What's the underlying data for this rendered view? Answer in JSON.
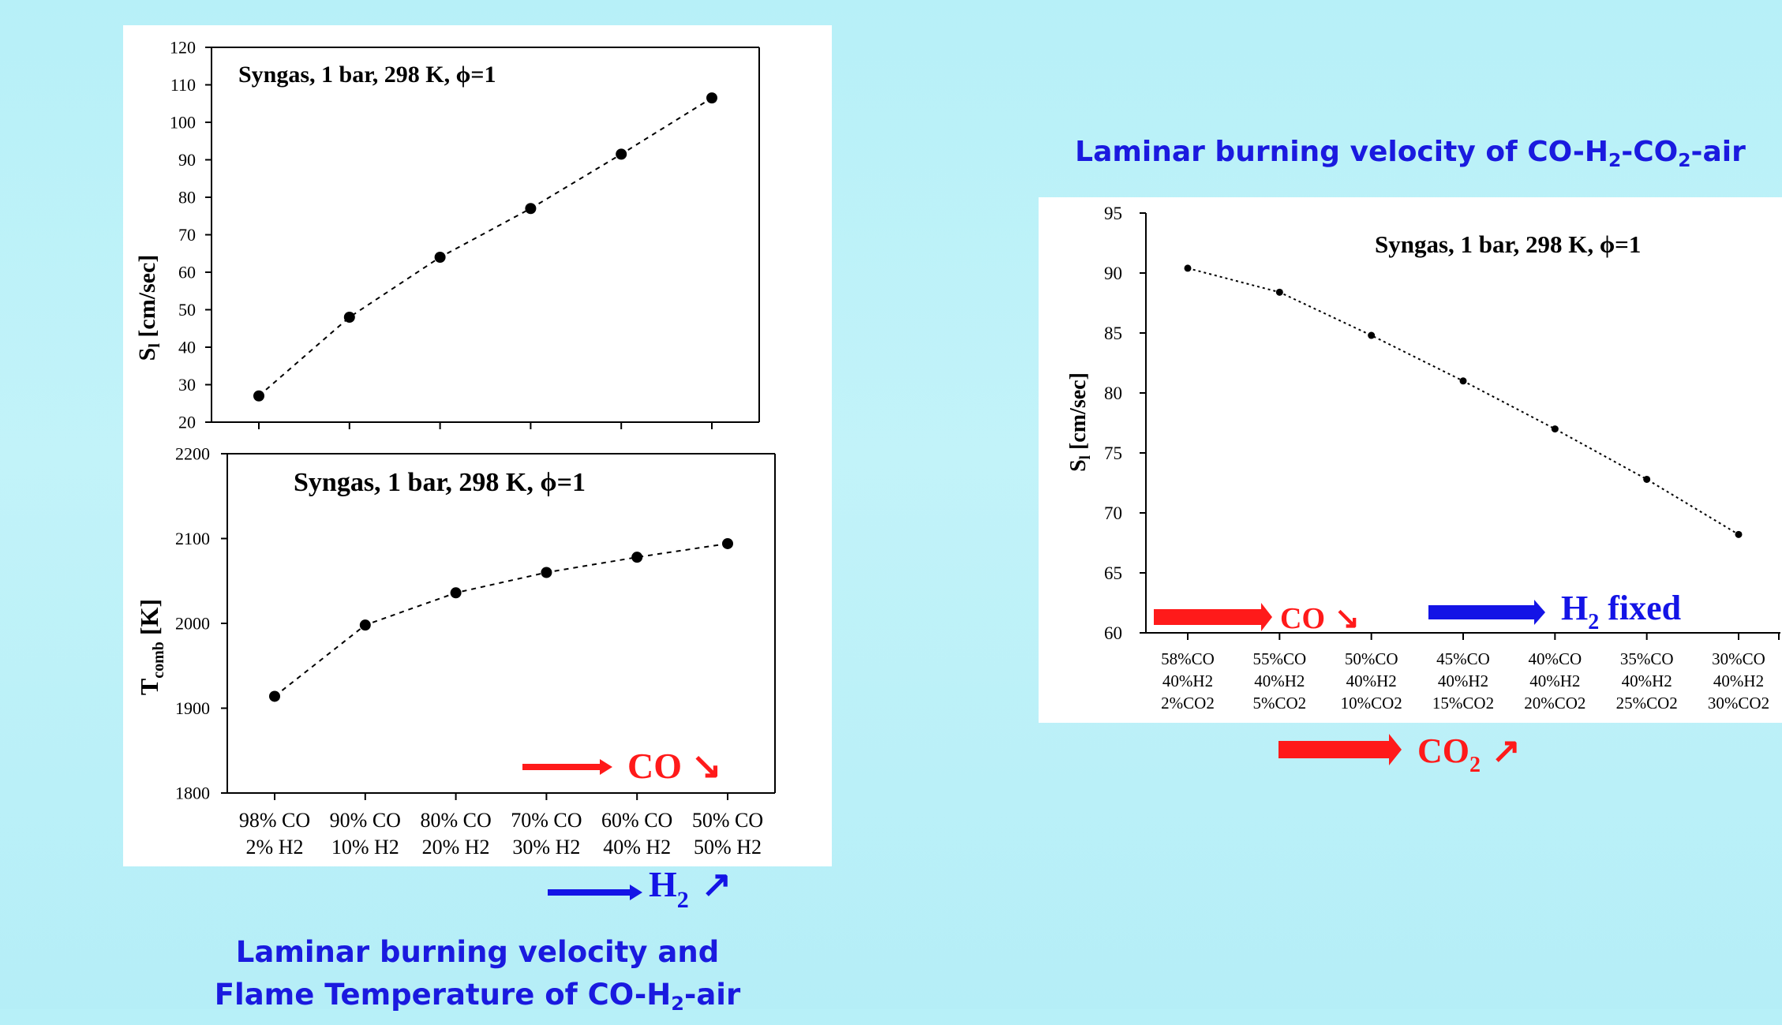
{
  "colors": {
    "red": "#ff1a1a",
    "blue": "#1414e6",
    "caption": "#1a1adf",
    "background": "#b9f0f8"
  },
  "captions": {
    "right": {
      "prefix": "Laminar burning velocity of CO-H",
      "sub1": "2",
      "mid": "-CO",
      "sub2": "2",
      "suffix": "-air"
    },
    "left": {
      "line1": "Laminar burning velocity  and",
      "line2_prefix": "Flame Temperature of CO-H",
      "line2_sub": "2",
      "line2_suffix": "-air"
    }
  },
  "annotations": {
    "co_down": {
      "text": "CO",
      "icon": "arrow-down-right-icon",
      "glyph": "↘"
    },
    "h2_up": {
      "text": "H",
      "sub": "2",
      "icon": "arrow-up-right-icon",
      "glyph": "↗"
    },
    "h2_fixed": {
      "text": "H",
      "sub": "2",
      "suffix": " fixed"
    },
    "co2_up": {
      "text": "CO",
      "sub": "2",
      "icon": "arrow-up-right-icon",
      "glyph": "↗"
    }
  },
  "chart_data": [
    {
      "type": "line",
      "title": "Syngas, 1 bar, 298 K, ϕ=1",
      "xlabel": "",
      "ylabel": "S",
      "ylabel_sub": "l",
      "ylabel_unit": " [cm/sec]",
      "ylim": [
        20,
        120
      ],
      "yticks": [
        20,
        30,
        40,
        50,
        60,
        70,
        80,
        90,
        100,
        110,
        120
      ],
      "categories": [
        "98% CO 2% H2",
        "90% CO 10% H2",
        "80% CO 20% H2",
        "70% CO 30% H2",
        "60% CO 40% H2",
        "50% CO 50% H2"
      ],
      "values": [
        27,
        48,
        64,
        77,
        91.5,
        106.5
      ],
      "grid": false,
      "line_style": "dashed"
    },
    {
      "type": "line",
      "title": "Syngas, 1 bar, 298 K, ϕ=1",
      "xlabel": "",
      "ylabel": "T",
      "ylabel_sub": "comb",
      "ylabel_unit": " [K]",
      "ylim": [
        1800,
        2200
      ],
      "yticks": [
        1800,
        1900,
        2000,
        2100,
        2200
      ],
      "categories": [
        "98% CO 2% H2",
        "90% CO 10% H2",
        "80% CO 20% H2",
        "70% CO 30% H2",
        "60% CO 40% H2",
        "50% CO 50% H2"
      ],
      "tick_lines": [
        [
          "98% CO",
          "2% H2"
        ],
        [
          "90% CO",
          "10% H2"
        ],
        [
          "80% CO",
          "20% H2"
        ],
        [
          "70% CO",
          "30% H2"
        ],
        [
          "60% CO",
          "40% H2"
        ],
        [
          "50% CO",
          "50% H2"
        ]
      ],
      "values": [
        1914,
        1998,
        2036,
        2060,
        2078,
        2094
      ],
      "grid": false,
      "line_style": "dashed"
    },
    {
      "type": "line",
      "title": "Syngas, 1 bar, 298 K, ϕ=1",
      "xlabel": "",
      "ylabel": "S",
      "ylabel_sub": "l",
      "ylabel_unit": " [cm/sec]",
      "ylim": [
        60,
        95
      ],
      "yticks": [
        60,
        65,
        70,
        75,
        80,
        85,
        90,
        95
      ],
      "categories": [
        "58%CO 40%H2 2%CO2",
        "55%CO 40%H2 5%CO2",
        "50%CO 40%H2 10%CO2",
        "45%CO 40%H2 15%CO2",
        "40%CO 40%H2 20%CO2",
        "35%CO 40%H2 25%CO2",
        "30%CO 40%H2 30%CO2"
      ],
      "tick_lines": [
        [
          "58%CO",
          "40%H2",
          "2%CO2"
        ],
        [
          "55%CO",
          "40%H2",
          "5%CO2"
        ],
        [
          "50%CO",
          "40%H2",
          "10%CO2"
        ],
        [
          "45%CO",
          "40%H2",
          "15%CO2"
        ],
        [
          "40%CO",
          "40%H2",
          "20%CO2"
        ],
        [
          "35%CO",
          "40%H2",
          "25%CO2"
        ],
        [
          "30%CO",
          "40%H2",
          "30%CO2"
        ]
      ],
      "values": [
        90.4,
        88.4,
        84.8,
        81.0,
        77.0,
        72.8,
        68.2
      ],
      "grid": false,
      "line_style": "dotted"
    }
  ]
}
